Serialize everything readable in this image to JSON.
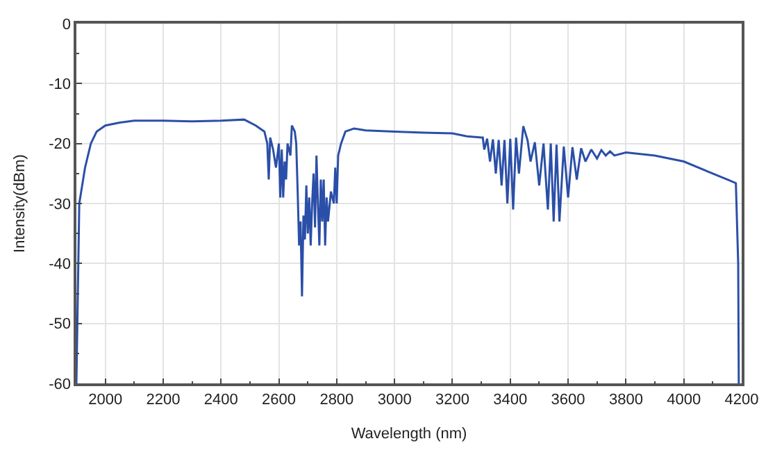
{
  "chart_data": {
    "type": "line",
    "xlabel": "Wavelength (nm)",
    "ylabel": "Intensity(dBm)",
    "xlim": [
      1900,
      4200
    ],
    "ylim": [
      -60,
      0
    ],
    "xticks": [
      2000,
      2200,
      2400,
      2600,
      2800,
      3000,
      3200,
      3400,
      3600,
      3800,
      4000,
      4200
    ],
    "yticks": [
      -60,
      -50,
      -40,
      -30,
      -20,
      -10,
      0
    ],
    "grid": true,
    "marker": "none",
    "line_style": "solid",
    "series": [
      {
        "color": "#2b4fa8",
        "x": [
          1900,
          1905,
          1910,
          1920,
          1930,
          1950,
          1970,
          2000,
          2050,
          2100,
          2200,
          2300,
          2400,
          2480,
          2520,
          2550,
          2560,
          2565,
          2570,
          2580,
          2590,
          2600,
          2605,
          2610,
          2615,
          2620,
          2625,
          2630,
          2640,
          2645,
          2655,
          2660,
          2665,
          2670,
          2675,
          2680,
          2685,
          2690,
          2695,
          2700,
          2705,
          2710,
          2715,
          2720,
          2725,
          2730,
          2735,
          2740,
          2745,
          2750,
          2755,
          2760,
          2765,
          2770,
          2780,
          2790,
          2795,
          2800,
          2805,
          2815,
          2830,
          2860,
          2900,
          3000,
          3100,
          3200,
          3250,
          3300,
          3305,
          3310,
          3320,
          3330,
          3340,
          3350,
          3360,
          3370,
          3380,
          3390,
          3400,
          3410,
          3420,
          3430,
          3445,
          3460,
          3470,
          3485,
          3500,
          3515,
          3530,
          3540,
          3550,
          3560,
          3570,
          3585,
          3600,
          3615,
          3630,
          3645,
          3660,
          3680,
          3700,
          3715,
          3730,
          3745,
          3760,
          3800,
          3900,
          4000,
          4100,
          4150,
          4180,
          4188,
          4190
        ],
        "values": [
          -60,
          -45,
          -30,
          -27,
          -24,
          -20,
          -18,
          -17,
          -16.5,
          -16.2,
          -16.2,
          -16.3,
          -16.2,
          -16,
          -17,
          -18,
          -20,
          -26,
          -19,
          -21,
          -24,
          -20,
          -29,
          -21,
          -29,
          -23,
          -26,
          -20,
          -22,
          -17,
          -18,
          -20,
          -28,
          -37,
          -33,
          -45.5,
          -32,
          -36,
          -27,
          -35,
          -29,
          -37,
          -30,
          -25,
          -34,
          -22,
          -30,
          -37,
          -26,
          -33,
          -26,
          -37,
          -29,
          -33,
          -28,
          -30,
          -24,
          -30,
          -22,
          -20,
          -18,
          -17.5,
          -17.8,
          -18,
          -18.2,
          -18.3,
          -18.8,
          -19,
          -19,
          -21,
          -19.2,
          -23,
          -19.3,
          -25,
          -19.4,
          -27,
          -19.4,
          -30,
          -19.2,
          -31,
          -19,
          -25,
          -17.1,
          -19.5,
          -23,
          -19.8,
          -27,
          -20,
          -31,
          -20,
          -33,
          -20.2,
          -33,
          -20.5,
          -29,
          -20.6,
          -26,
          -20.8,
          -23,
          -21,
          -22.5,
          -21.1,
          -22,
          -21.3,
          -22,
          -21.5,
          -22,
          -23,
          -25,
          -26,
          -26.6,
          -40,
          -60
        ]
      }
    ]
  }
}
